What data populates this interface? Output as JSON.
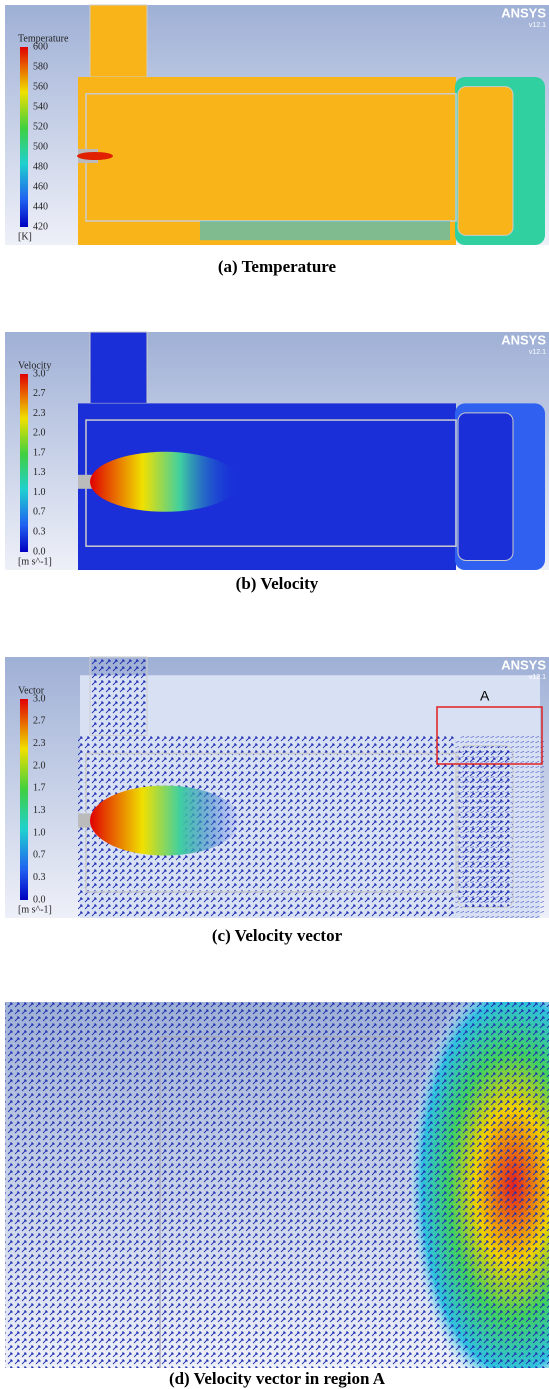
{
  "panels": [
    {
      "caption": "(a)  Temperature",
      "legend": {
        "title": "Temperature",
        "ticks": [
          "600",
          "580",
          "560",
          "540",
          "520",
          "500",
          "480",
          "460",
          "440",
          "420"
        ],
        "unit": "[K]"
      },
      "logo": "ANSYS",
      "version": "v12.1"
    },
    {
      "caption": "(b)  Velocity",
      "legend": {
        "title": "Velocity",
        "ticks": [
          "3.0",
          "2.7",
          "2.3",
          "2.0",
          "1.7",
          "1.3",
          "1.0",
          "0.7",
          "0.3",
          "0.0"
        ],
        "unit": "[m s^-1]"
      },
      "logo": "ANSYS",
      "version": "v12.1"
    },
    {
      "caption": "(c)  Velocity  vector",
      "legend": {
        "title": "Vector",
        "ticks": [
          "3.0",
          "2.7",
          "2.3",
          "2.0",
          "1.7",
          "1.3",
          "1.0",
          "0.7",
          "0.3",
          "0.0"
        ],
        "unit": "[m s^-1]"
      },
      "logo": "ANSYS",
      "version": "v12.1",
      "region_label": "A"
    },
    {
      "caption": "(d)  Velocity  vector  in  region  A"
    }
  ]
}
